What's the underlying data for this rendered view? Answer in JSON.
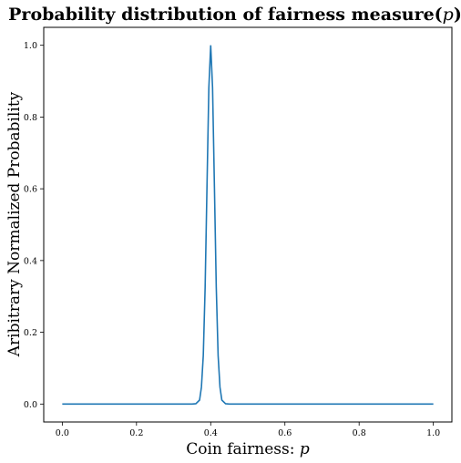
{
  "chart_data": {
    "type": "line",
    "title": "Probability distribution of fairness measure(p)",
    "title_prefix": "Probability distribution of fairness measure(",
    "title_symbol": "p",
    "title_suffix": ")",
    "xlabel": "Coin fairness: p",
    "xlabel_prefix": "Coin fairness: ",
    "xlabel_symbol": "p",
    "ylabel": "Aribitrary Normalized Probability",
    "xlim": [
      -0.05,
      1.05
    ],
    "ylim": [
      -0.05,
      1.05
    ],
    "xticks": [
      "0.0",
      "0.2",
      "0.4",
      "0.6",
      "0.8",
      "1.0"
    ],
    "yticks": [
      "0.0",
      "0.2",
      "0.4",
      "0.6",
      "0.8",
      "1.0"
    ],
    "grid": false,
    "legend": false,
    "line_color": "#1f77b4",
    "series": [
      {
        "x": [
          0.0,
          0.1,
          0.2,
          0.3,
          0.35,
          0.36,
          0.37,
          0.375,
          0.38,
          0.385,
          0.39,
          0.395,
          0.4,
          0.405,
          0.41,
          0.415,
          0.42,
          0.425,
          0.43,
          0.44,
          0.45,
          0.5,
          0.6,
          0.7,
          0.8,
          0.9,
          1.0
        ],
        "y": [
          0.0,
          0.0,
          0.0,
          0.0,
          0.0,
          0.001,
          0.011,
          0.047,
          0.135,
          0.325,
          0.607,
          0.882,
          1.0,
          0.882,
          0.607,
          0.325,
          0.135,
          0.047,
          0.011,
          0.001,
          0.0,
          0.0,
          0.0,
          0.0,
          0.0,
          0.0,
          0.0
        ]
      }
    ]
  }
}
